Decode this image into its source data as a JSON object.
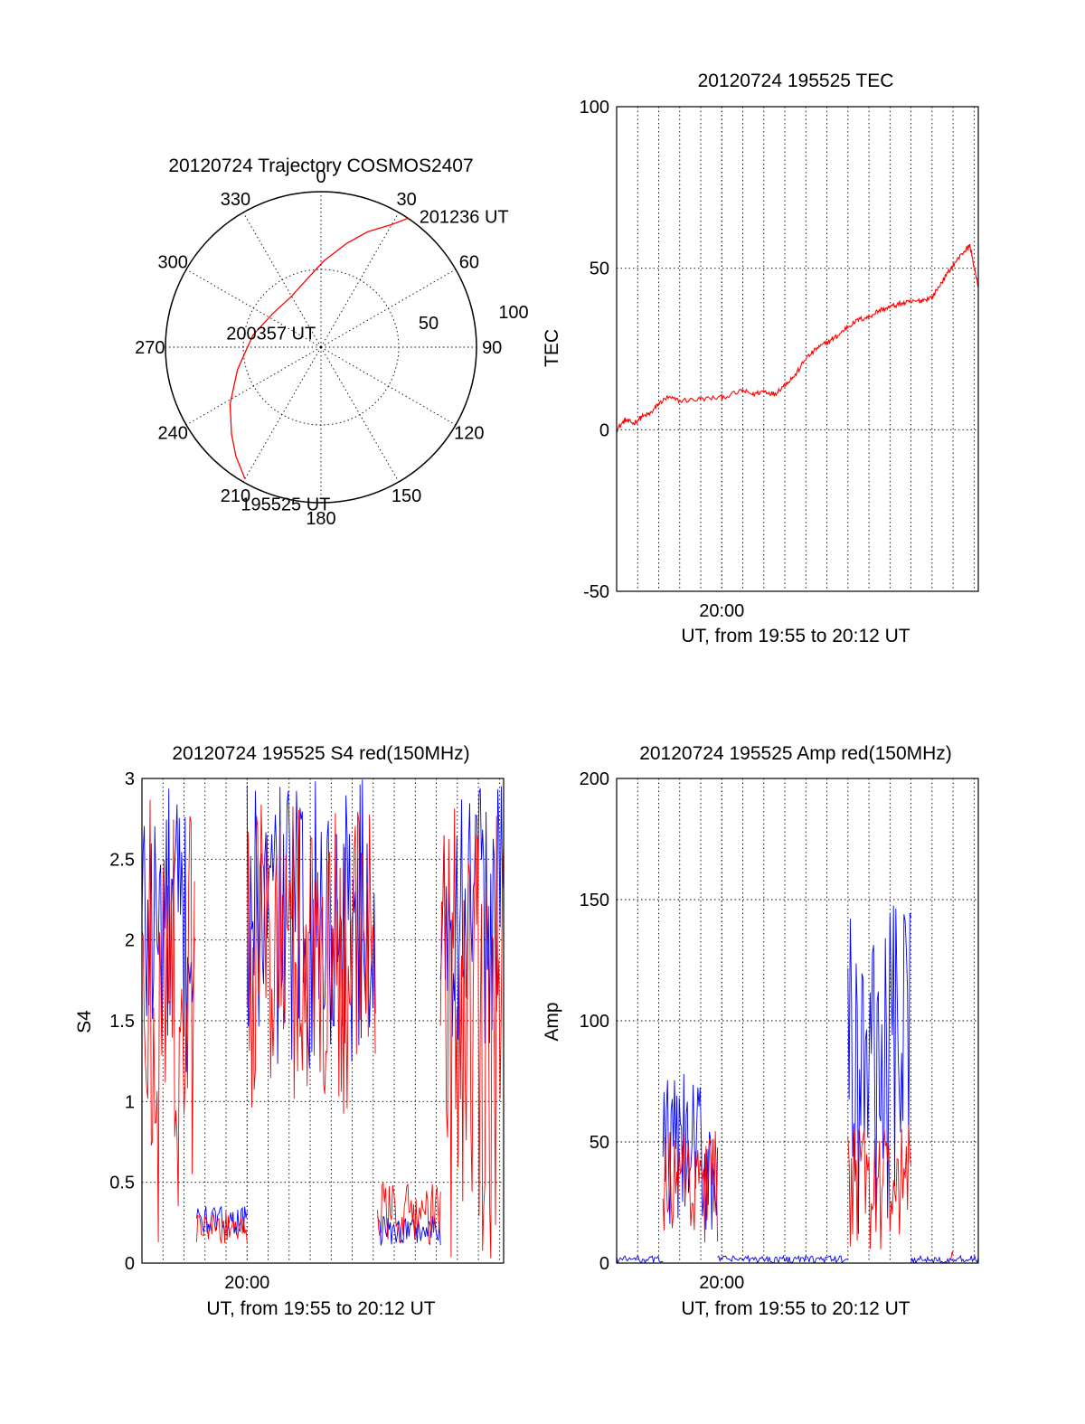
{
  "colors": {
    "red": "#ff0000",
    "blue": "#0000ff",
    "black": "#000000"
  },
  "chart_data": [
    {
      "type": "polar",
      "title": "20120724 Trajectory COSMOS2407",
      "angle_labels": [
        "0",
        "30",
        "60",
        "90",
        "120",
        "150",
        "180",
        "210",
        "240",
        "270",
        "300",
        "330"
      ],
      "radial_labels": [
        "50",
        "100"
      ],
      "radial_max": 90,
      "grid": true,
      "series": [
        {
          "color": "red",
          "azimuth": [
            210,
            218,
            226,
            238,
            255,
            280,
            305,
            330,
            348,
            2,
            14,
            22,
            30,
            34
          ],
          "zenith": [
            88,
            80,
            72,
            62,
            50,
            40,
            34,
            34,
            40,
            50,
            62,
            72,
            82,
            90
          ]
        }
      ],
      "annotations": [
        {
          "text": "195525 UT",
          "azimuth": 210,
          "zenith": 88
        },
        {
          "text": "200357 UT",
          "azimuth": 280,
          "zenith": 40
        },
        {
          "text": "201236 UT",
          "azimuth": 34,
          "zenith": 90
        }
      ]
    },
    {
      "type": "line",
      "title": "20120724 195525 TEC",
      "xlabel": "UT, from 19:55 to 20:12 UT",
      "ylabel": "TEC",
      "xlim": [
        0,
        17.2
      ],
      "ylim": [
        -50,
        100
      ],
      "yticks": [
        -50,
        0,
        50,
        100
      ],
      "xtick_labels": [
        {
          "x": 5,
          "label": "20:00"
        }
      ],
      "grid": true,
      "series": [
        {
          "color": "red",
          "x": [
            0,
            0.4,
            0.8,
            1.2,
            1.6,
            2.0,
            2.4,
            3.0,
            4.0,
            5.0,
            6.0,
            6.5,
            7.0,
            7.5,
            8.0,
            8.5,
            9.0,
            9.5,
            10.0,
            10.5,
            11.0,
            11.5,
            12.0,
            12.5,
            13.0,
            13.5,
            14.0,
            14.5,
            15.0,
            15.5,
            16.0,
            16.5,
            16.8,
            17.2
          ],
          "y": [
            0,
            3,
            2,
            4,
            5,
            8,
            10,
            9,
            9.5,
            10,
            12,
            11,
            12,
            11,
            14,
            17,
            22,
            25,
            27,
            29,
            32,
            34,
            35,
            37,
            38,
            39,
            39.5,
            40,
            41,
            46,
            51,
            55,
            57,
            44
          ]
        }
      ]
    },
    {
      "type": "line",
      "title": "20120724 195525 S4 red(150MHz)",
      "xlabel": "UT, from 19:55 to 20:12 UT",
      "ylabel": "S4",
      "xlim": [
        0,
        17.2
      ],
      "ylim": [
        0,
        3
      ],
      "yticks": [
        0,
        0.5,
        1,
        1.5,
        2,
        2.5,
        3
      ],
      "xtick_labels": [
        {
          "x": 5,
          "label": "20:00"
        }
      ],
      "grid": true,
      "series": [
        {
          "color": "blue",
          "segments": [
            {
              "x_range": [
                0,
                2.5
              ],
              "low": 1.0,
              "high": 3.0
            },
            {
              "x_range": [
                2.6,
                5.0
              ],
              "low": 0.17,
              "high": 0.35
            },
            {
              "x_range": [
                5.0,
                11.1
              ],
              "low": 1.2,
              "high": 3.0
            },
            {
              "x_range": [
                11.2,
                14.2
              ],
              "low": 0.1,
              "high": 0.3
            },
            {
              "x_range": [
                14.2,
                17.2
              ],
              "low": 1.3,
              "high": 3.0
            }
          ]
        },
        {
          "color": "red",
          "segments": [
            {
              "x_range": [
                0,
                2.5
              ],
              "low": 0.0,
              "high": 3.0
            },
            {
              "x_range": [
                2.6,
                5.0
              ],
              "low": 0.12,
              "high": 0.32
            },
            {
              "x_range": [
                5.0,
                11.1
              ],
              "low": 0.9,
              "high": 2.9
            },
            {
              "x_range": [
                11.2,
                14.2
              ],
              "low": 0.1,
              "high": 0.5
            },
            {
              "x_range": [
                14.2,
                17.2
              ],
              "low": 0.0,
              "high": 3.0
            }
          ]
        }
      ]
    },
    {
      "type": "line",
      "title": "20120724 195525 Amp red(150MHz)",
      "xlabel": "UT, from 19:55 to 20:12 UT",
      "ylabel": "Amp",
      "xlim": [
        0,
        17.2
      ],
      "ylim": [
        0,
        200
      ],
      "yticks": [
        0,
        50,
        100,
        150,
        200
      ],
      "xtick_labels": [
        {
          "x": 5,
          "label": "20:00"
        }
      ],
      "grid": true,
      "series": [
        {
          "color": "blue",
          "segments": [
            {
              "x_range": [
                0,
                2.2
              ],
              "low": 0,
              "high": 3
            },
            {
              "x_range": [
                2.2,
                4.8
              ],
              "low": 5,
              "high": 78
            },
            {
              "x_range": [
                4.8,
                11.0
              ],
              "low": 0,
              "high": 3
            },
            {
              "x_range": [
                11.0,
                14.0
              ],
              "low": 10,
              "high": 148
            },
            {
              "x_range": [
                14.0,
                17.2
              ],
              "low": 0,
              "high": 3
            }
          ]
        },
        {
          "color": "red",
          "segments": [
            {
              "x_range": [
                2.2,
                4.8
              ],
              "low": 2,
              "high": 55
            },
            {
              "x_range": [
                11.0,
                14.0
              ],
              "low": 2,
              "high": 58
            },
            {
              "x_range": [
                15.9,
                16.0
              ],
              "low": 0,
              "high": 5
            }
          ]
        }
      ]
    }
  ]
}
